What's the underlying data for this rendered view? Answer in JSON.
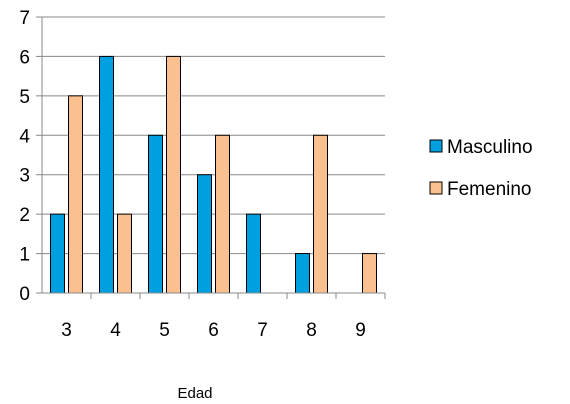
{
  "chart_data": {
    "type": "bar",
    "title": "",
    "xlabel": "Edad",
    "ylabel": "",
    "categories": [
      "3",
      "4",
      "5",
      "6",
      "7",
      "8",
      "9"
    ],
    "series": [
      {
        "name": "Masculino",
        "color": "#00a0e0",
        "values": [
          2,
          6,
          4,
          3,
          2,
          1,
          0
        ]
      },
      {
        "name": "Femenino",
        "color": "#fbc08f",
        "values": [
          5,
          2,
          6,
          4,
          0,
          4,
          1
        ]
      }
    ],
    "ylim": [
      0,
      7
    ],
    "yticks": [
      "0",
      "1",
      "2",
      "3",
      "4",
      "5",
      "6",
      "7"
    ],
    "grid": true,
    "legend": "right",
    "bar_outline_color": "#000000",
    "gridline_color": "#888888"
  }
}
